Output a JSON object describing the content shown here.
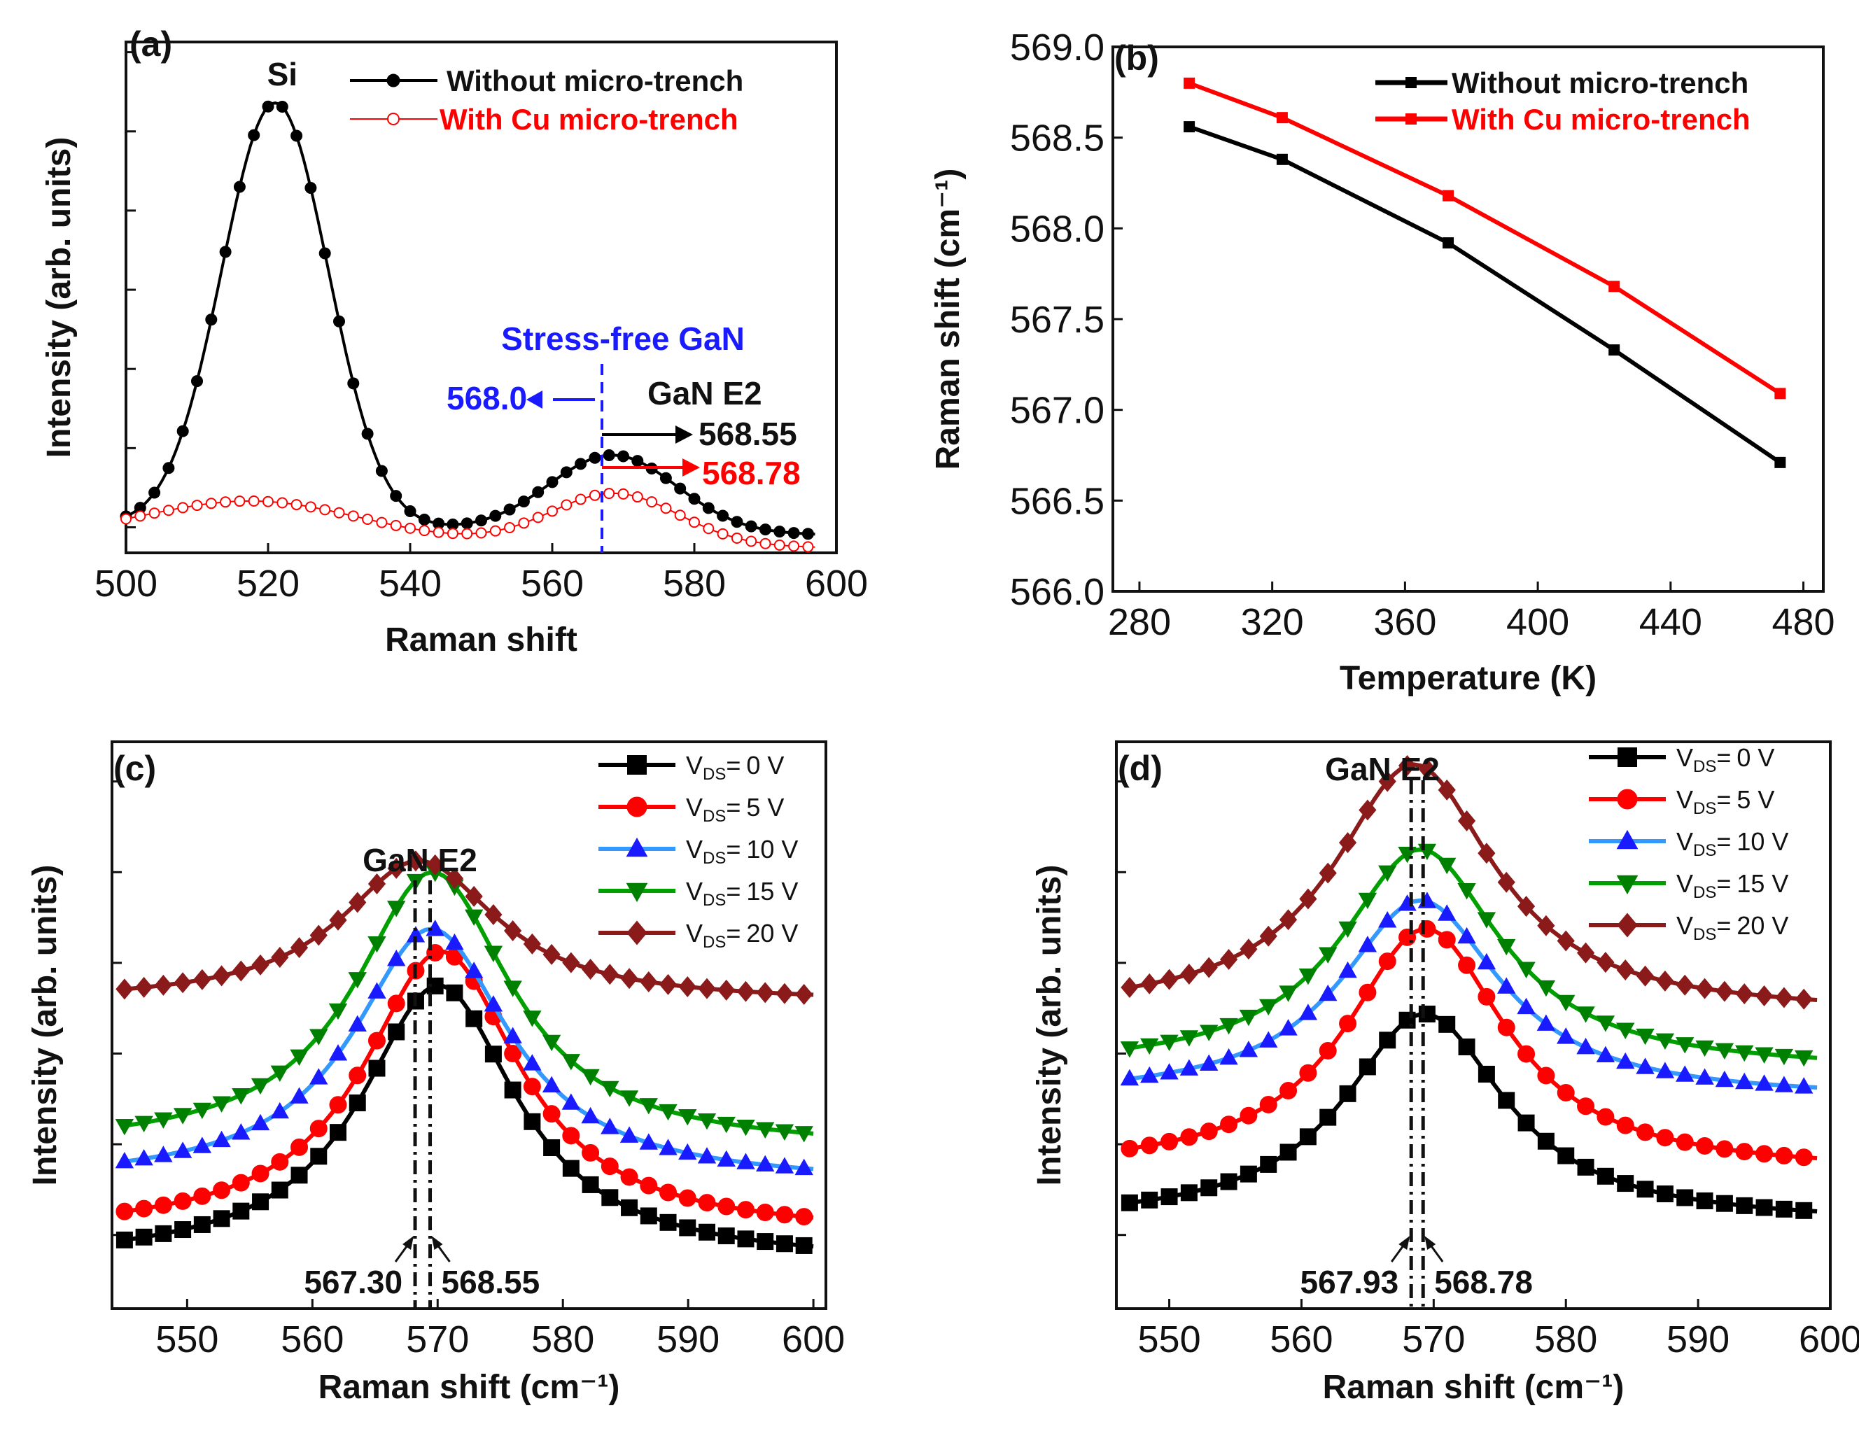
{
  "chart_data": [
    {
      "id": "a",
      "type": "line",
      "panel_label": "(a)",
      "xlabel": "Raman shift",
      "ylabel": "Intensity (arb. units)",
      "xlim": [
        500,
        600
      ],
      "ylim": [
        0,
        10
      ],
      "xticks": [
        "500",
        "520",
        "540",
        "560",
        "580",
        "600"
      ],
      "xtick_values": [
        500,
        520,
        540,
        560,
        580,
        600
      ],
      "series": [
        {
          "name": "Without micro-trench",
          "color": "#000000",
          "marker": "circle-filled",
          "model": {
            "baseline": 0.55,
            "slope": -0.002,
            "peaks": [
              {
                "c": 521,
                "a": 8.3,
                "s": 7.5
              },
              {
                "c": 568.55,
                "a": 1.5,
                "s": 9
              }
            ]
          }
        },
        {
          "name": "With Cu micro-trench",
          "color": "#ff0000",
          "marker": "circle-open",
          "model": {
            "baseline": 0.3,
            "slope": -0.002,
            "peaks": [
              {
                "c": 518,
                "a": 0.75,
                "s": 15
              },
              {
                "c": 568.78,
                "a": 1.0,
                "s": 9
              }
            ]
          }
        }
      ],
      "annotations": {
        "si_peak": "Si",
        "stress_free": "Stress-free GaN",
        "stress_free_value": "568.0",
        "mode": "GaN E2",
        "without_value": "568.55",
        "with_value": "568.78",
        "dashed_line_x": 567
      }
    },
    {
      "id": "b",
      "type": "line",
      "panel_label": "(b)",
      "xlabel": "Temperature (K)",
      "ylabel": "Raman shift (cm⁻¹)",
      "xlim": [
        272,
        486
      ],
      "ylim": [
        566.0,
        569.0
      ],
      "xticks": [
        "280",
        "320",
        "360",
        "400",
        "440",
        "480"
      ],
      "xtick_values": [
        280,
        320,
        360,
        400,
        440,
        480
      ],
      "yticks": [
        "566.0",
        "566.5",
        "567.0",
        "567.5",
        "568.0",
        "568.5",
        "569.0"
      ],
      "ytick_values": [
        566.0,
        566.5,
        567.0,
        567.5,
        568.0,
        568.5,
        569.0
      ],
      "x": [
        295,
        323,
        373,
        423,
        473
      ],
      "series": [
        {
          "name": "Without micro-trench",
          "color": "#000000",
          "values": [
            568.56,
            568.38,
            567.92,
            567.33,
            566.71
          ]
        },
        {
          "name": "With Cu micro-trench",
          "color": "#ff0000",
          "values": [
            568.8,
            568.61,
            568.18,
            567.68,
            567.09
          ]
        }
      ]
    },
    {
      "id": "c",
      "type": "line",
      "panel_label": "(c)",
      "xlabel": "Raman shift (cm⁻¹)",
      "ylabel": "Intensity (arb. units)",
      "xlim": [
        544,
        601
      ],
      "ylim": [
        0,
        10
      ],
      "xticks": [
        "550",
        "560",
        "570",
        "580",
        "590",
        "600"
      ],
      "xtick_values": [
        550,
        560,
        570,
        580,
        590,
        600
      ],
      "x_start": 545,
      "x_end": 600,
      "x_step": 1.55,
      "peak_label": "GaN E2",
      "dashed_lines": [
        568.2,
        569.4
      ],
      "value_labels": [
        "567.30",
        "568.55"
      ],
      "series": [
        {
          "name": "0 V",
          "color": "#000000",
          "line_color": "#000000",
          "marker": "square",
          "base": 0.8,
          "amp": 4.9,
          "center": 570.1,
          "width": 7.6
        },
        {
          "name": "5 V",
          "color": "#ff0000",
          "line_color": "#ff0000",
          "marker": "circle",
          "base": 1.3,
          "amp": 5.0,
          "center": 570.3,
          "width": 7.6
        },
        {
          "name": "10 V",
          "color": "#1a1aff",
          "line_color": "#3399ff",
          "marker": "triangle-up",
          "base": 2.2,
          "amp": 4.5,
          "center": 569.5,
          "width": 7.6
        },
        {
          "name": "15 V",
          "color": "#008000",
          "line_color": "#00a000",
          "marker": "triangle-down",
          "base": 2.8,
          "amp": 4.9,
          "center": 569.6,
          "width": 7.6
        },
        {
          "name": "20 V",
          "color": "#8b1a1a",
          "line_color": "#8b1a1a",
          "marker": "diamond",
          "base": 5.4,
          "amp": 2.5,
          "center": 568.5,
          "width": 7.6
        }
      ],
      "legend_prefix": "V",
      "legend_sub": "DS",
      "legend_suffix": "="
    },
    {
      "id": "d",
      "type": "line",
      "panel_label": "(d)",
      "xlabel": "Raman shift (cm⁻¹)",
      "ylabel": "Intensity (arb. units)",
      "xlim": [
        546,
        600
      ],
      "ylim": [
        0,
        10
      ],
      "xticks": [
        "550",
        "560",
        "570",
        "580",
        "590",
        "600"
      ],
      "xtick_values": [
        550,
        560,
        570,
        580,
        590,
        600
      ],
      "x_start": 547,
      "x_end": 599,
      "x_step": 1.5,
      "peak_label": "GaN E2",
      "dashed_lines": [
        568.3,
        569.2
      ],
      "value_labels": [
        "567.93",
        "568.78"
      ],
      "series": [
        {
          "name": "0 V",
          "color": "#000000",
          "line_color": "#000000",
          "marker": "square",
          "base": 1.5,
          "amp": 3.7,
          "center": 569.3,
          "width": 7.4
        },
        {
          "name": "5 V",
          "color": "#ff0000",
          "line_color": "#ff0000",
          "marker": "circle",
          "base": 2.4,
          "amp": 4.3,
          "center": 569.4,
          "width": 7.4
        },
        {
          "name": "10 V",
          "color": "#1a1aff",
          "line_color": "#3399ff",
          "marker": "triangle-up",
          "base": 3.7,
          "amp": 3.5,
          "center": 569.0,
          "width": 7.4
        },
        {
          "name": "15 V",
          "color": "#008000",
          "line_color": "#00a000",
          "marker": "triangle-down",
          "base": 4.2,
          "amp": 3.9,
          "center": 569.0,
          "width": 7.4
        },
        {
          "name": "20 V",
          "color": "#8b1a1a",
          "line_color": "#8b1a1a",
          "marker": "diamond",
          "base": 5.2,
          "amp": 4.4,
          "center": 568.5,
          "width": 7.4
        }
      ],
      "legend_prefix": "V",
      "legend_sub": "DS",
      "legend_suffix": "="
    }
  ]
}
